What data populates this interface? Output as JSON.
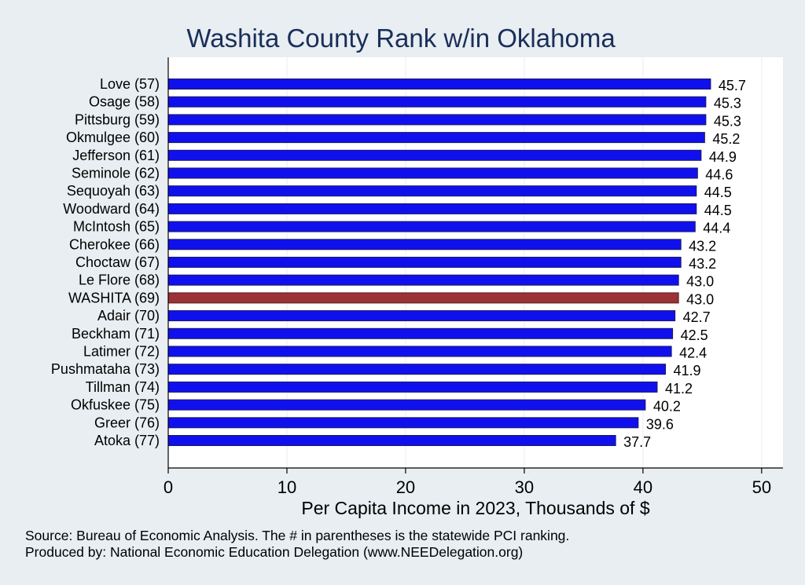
{
  "chart_data": {
    "type": "bar",
    "orientation": "horizontal",
    "title": "Washita County Rank w/in Oklahoma",
    "xlabel": "Per Capita Income in 2023, Thousands of $",
    "ylabel": "",
    "xlim": [
      0,
      51.8
    ],
    "xticks": [
      0,
      10,
      20,
      30,
      40,
      50
    ],
    "categories": [
      "Love (57)",
      "Osage (58)",
      "Pittsburg (59)",
      "Okmulgee (60)",
      "Jefferson (61)",
      "Seminole (62)",
      "Sequoyah (63)",
      "Woodward (64)",
      "McIntosh (65)",
      "Cherokee (66)",
      "Choctaw (67)",
      "Le Flore (68)",
      "WASHITA (69)",
      "Adair (70)",
      "Beckham (71)",
      "Latimer (72)",
      "Pushmataha (73)",
      "Tillman (74)",
      "Okfuskee (75)",
      "Greer (76)",
      "Atoka (77)"
    ],
    "values": [
      45.7,
      45.3,
      45.3,
      45.2,
      44.9,
      44.6,
      44.5,
      44.5,
      44.4,
      43.2,
      43.2,
      43.0,
      43.0,
      42.7,
      42.5,
      42.4,
      41.9,
      41.2,
      40.2,
      39.6,
      37.7
    ],
    "value_labels": [
      "45.7",
      "45.3",
      "45.3",
      "45.2",
      "44.9",
      "44.6",
      "44.5",
      "44.5",
      "44.4",
      "43.2",
      "43.2",
      "43.0",
      "43.0",
      "42.7",
      "42.5",
      "42.4",
      "41.9",
      "41.2",
      "40.2",
      "39.6",
      "37.7"
    ],
    "highlight_index": 12,
    "grid": true,
    "colors": {
      "background": "#e8eef1",
      "plot_background": "#ffffff",
      "grid": "#e6eef1",
      "bar": "#1010ee",
      "bar_highlight": "#9a3236",
      "bar_edge": "#1a1a60",
      "title": "#1a2e5a"
    }
  },
  "footer": {
    "source": "Source: Bureau of Economic Analysis. The # in parentheses is the statewide PCI ranking.",
    "produced_by": "Produced by: National Economic Education Delegation (www.NEEDelegation.org)"
  }
}
